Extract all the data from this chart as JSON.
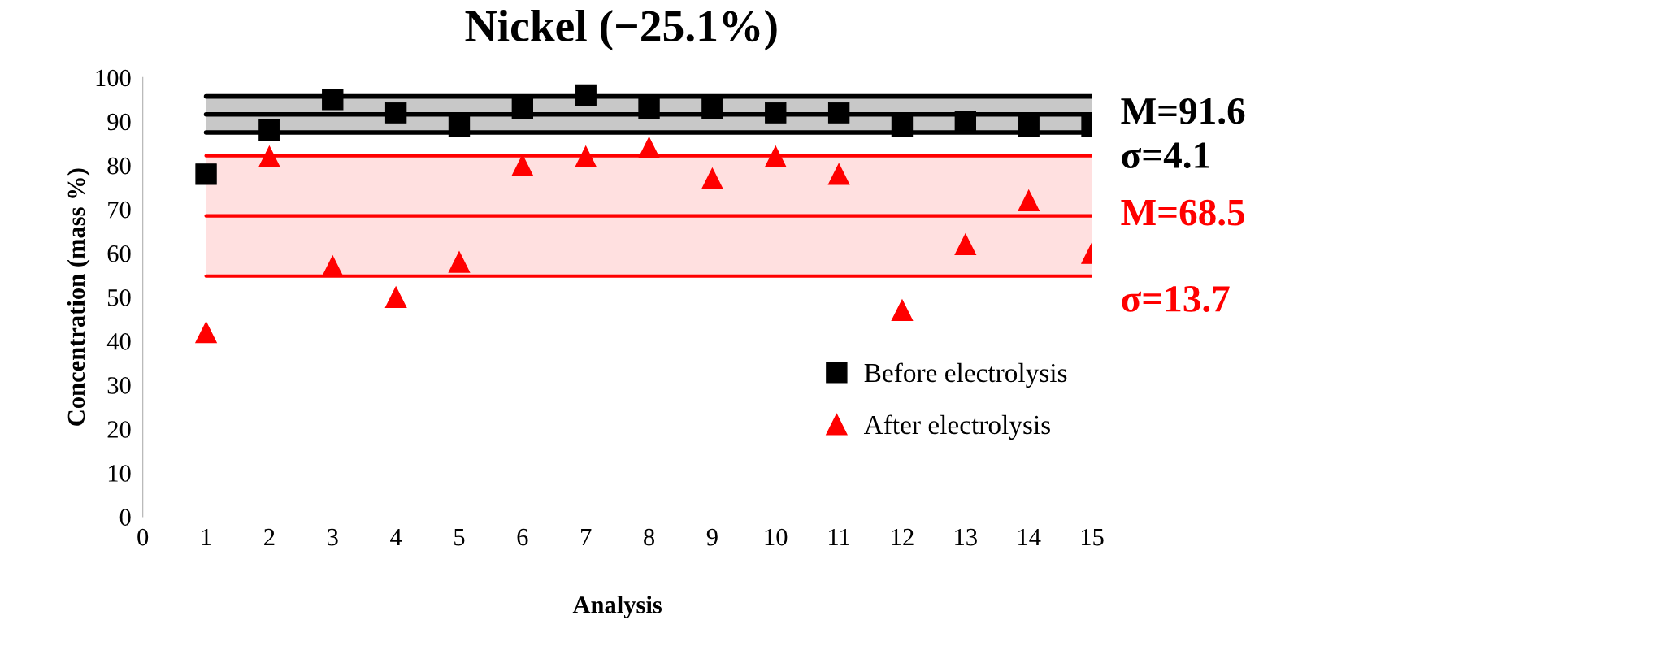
{
  "chart_data": {
    "type": "scatter",
    "title": "Nickel (−25.1%)",
    "xlabel": "Analysis",
    "ylabel": "Concentration (mass %)",
    "x": [
      1,
      2,
      3,
      4,
      5,
      6,
      7,
      8,
      9,
      10,
      11,
      12,
      13,
      14,
      15
    ],
    "series": [
      {
        "name": "Before electrolysis",
        "color": "#000000",
        "marker": "square",
        "values": [
          78,
          88,
          95,
          92,
          89,
          93,
          96,
          93,
          93,
          92,
          92,
          89,
          90,
          89,
          89
        ]
      },
      {
        "name": "After electrolysis",
        "color": "#ff0000",
        "marker": "triangle",
        "values": [
          42,
          82,
          57,
          50,
          58,
          80,
          82,
          84,
          77,
          82,
          78,
          47,
          62,
          72,
          60
        ]
      }
    ],
    "xlim": [
      0,
      15
    ],
    "xticks": [
      0,
      1,
      2,
      3,
      4,
      5,
      6,
      7,
      8,
      9,
      10,
      11,
      12,
      13,
      14,
      15
    ],
    "ylim": [
      0,
      100
    ],
    "yticks": [
      0,
      10,
      20,
      30,
      40,
      50,
      60,
      70,
      80,
      90,
      100
    ],
    "grid": false,
    "legend": "lower right",
    "bands": [
      {
        "axis": "y",
        "from": 87.5,
        "to": 95.7,
        "label": "σ=4.1",
        "color": "#c8c8c8"
      },
      {
        "axis": "y",
        "from": 54.8,
        "to": 82.2,
        "label": "σ=13.7",
        "color": "#ffe0e0"
      }
    ],
    "ref_lines": [
      {
        "axis": "y",
        "value": 95.7,
        "color": "#000000"
      },
      {
        "axis": "y",
        "value": 91.6,
        "label": "M=91.6",
        "color": "#000000"
      },
      {
        "axis": "y",
        "value": 87.5,
        "color": "#000000"
      },
      {
        "axis": "y",
        "value": 82.2,
        "color": "#ff0000"
      },
      {
        "axis": "y",
        "value": 68.5,
        "label": "M=68.5",
        "color": "#ff0000"
      },
      {
        "axis": "y",
        "value": 54.8,
        "color": "#ff0000"
      }
    ]
  }
}
